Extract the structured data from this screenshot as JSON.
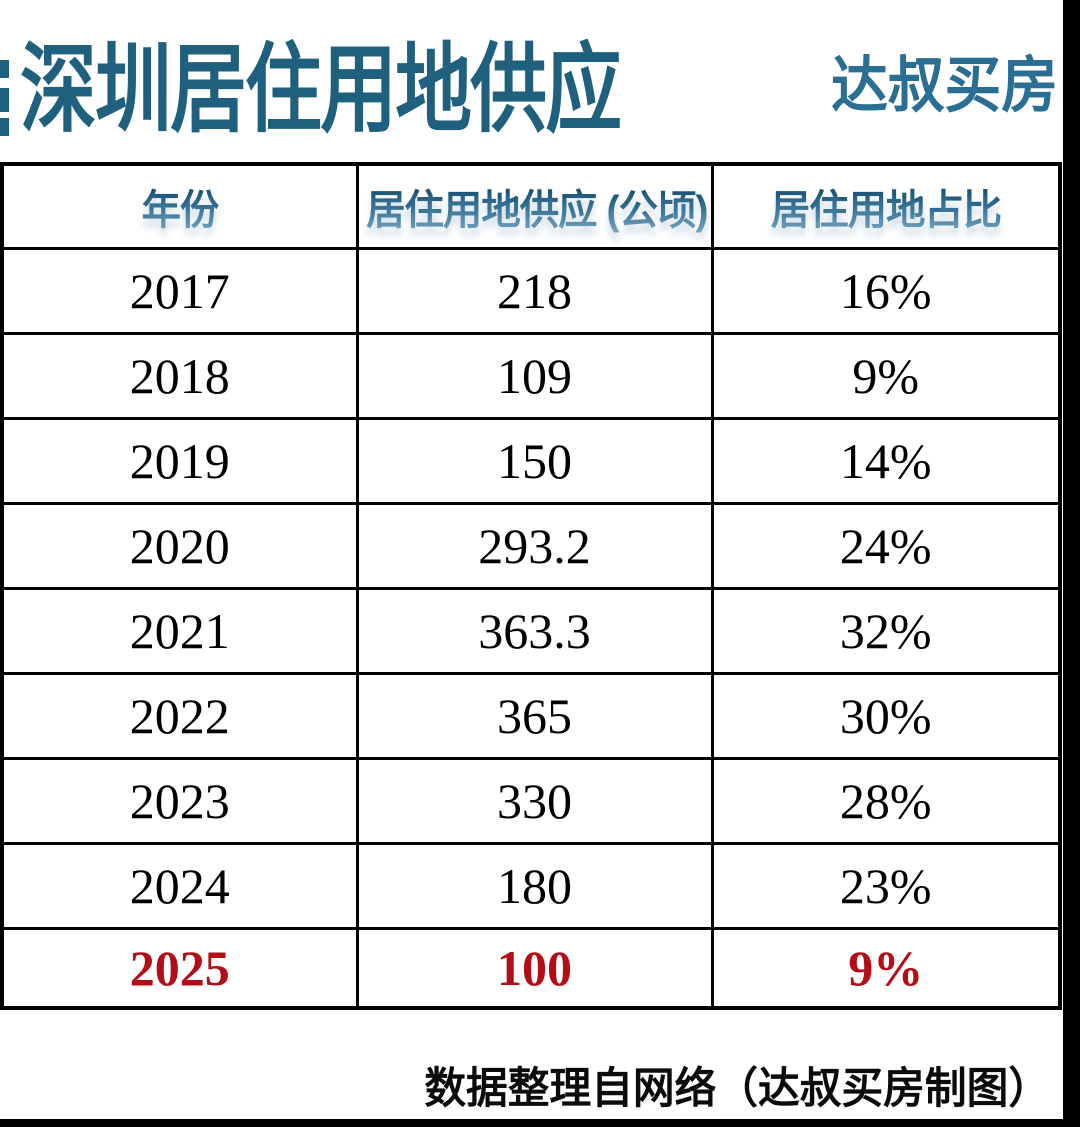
{
  "page": {
    "title": "深圳居住用地供应",
    "brand": "达叔买房",
    "footer": "数据整理自网络（达叔买房制图）"
  },
  "colors": {
    "title_teal": "#20607f",
    "brand_teal": "#2a6e93",
    "header_gradient_top": "#16496b",
    "header_gradient_bottom": "#86afc9",
    "highlight_red": "#b30d17",
    "border_black": "#000000"
  },
  "chart_data": {
    "type": "table",
    "title": "深圳居住用地供应",
    "columns": [
      "年份",
      "居住用地供应 (公顷)",
      "居住用地占比"
    ],
    "rows": [
      [
        "2017",
        "218",
        "16%"
      ],
      [
        "2018",
        "109",
        "9%"
      ],
      [
        "2019",
        "150",
        "14%"
      ],
      [
        "2020",
        "293.2",
        "24%"
      ],
      [
        "2021",
        "363.3",
        "32%"
      ],
      [
        "2022",
        "365",
        "30%"
      ],
      [
        "2023",
        "330",
        "28%"
      ],
      [
        "2024",
        "180",
        "23%"
      ],
      [
        "2025",
        "100",
        "9%"
      ]
    ],
    "highlight_year": "2025",
    "source_note": "数据整理自网络（达叔买房制图）"
  }
}
